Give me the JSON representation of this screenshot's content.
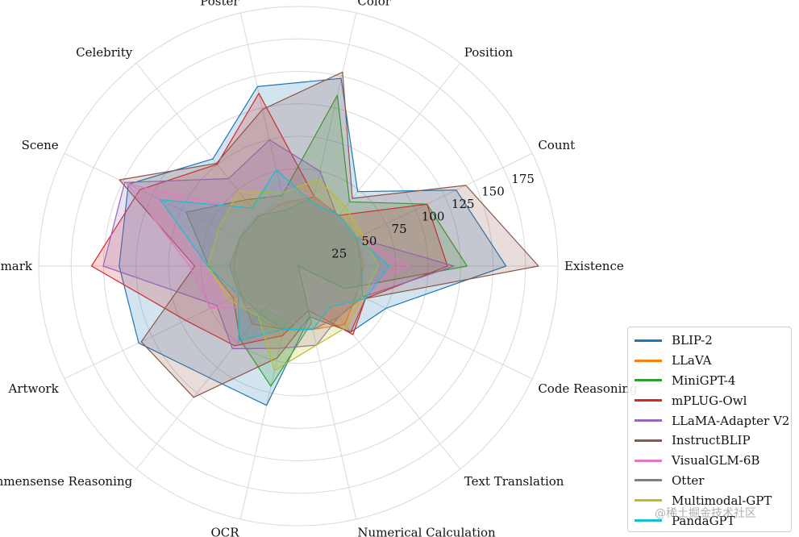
{
  "chart_data": {
    "type": "radar",
    "title": "",
    "categories": [
      "Existence",
      "Count",
      "Position",
      "Color",
      "Poster",
      "Celebrity",
      "Scene",
      "Landmark",
      "Artwork",
      "Commensense Reasoning",
      "OCR",
      "Numerical Calculation",
      "Text Translation",
      "Code Reasoning"
    ],
    "rlim": [
      0,
      200
    ],
    "rticks": [
      25,
      50,
      75,
      100,
      125,
      150,
      175
    ],
    "grid": true,
    "legend_position": "bottom-right",
    "series": [
      {
        "name": "BLIP-2",
        "color": "#1f77b4",
        "values": [
          160,
          135,
          73.3,
          148.3,
          141.8,
          105.6,
          145.3,
          138,
          136.5,
          110,
          110,
          40,
          65,
          75
        ]
      },
      {
        "name": "LLaVA",
        "color": "#ff7f0e",
        "values": [
          50,
          50,
          50,
          55,
          50,
          48.8,
          50,
          50,
          49,
          57.1,
          50,
          50,
          57.5,
          50
        ]
      },
      {
        "name": "MiniGPT-4",
        "color": "#2ca02c",
        "values": [
          130,
          110,
          63.3,
          135,
          55.8,
          65.3,
          95.8,
          69,
          55.8,
          72.1,
          95,
          45,
          0,
          40
        ]
      },
      {
        "name": "mPLUG-Owl",
        "color": "#d62728",
        "values": [
          115,
          110,
          50,
          55,
          136.5,
          100.3,
          135.5,
          159.3,
          96.3,
          78.6,
          55,
          35,
          67.5,
          57.5
        ]
      },
      {
        "name": "LLaMA-Adapter V2",
        "color": "#9467bd",
        "values": [
          120,
          50,
          48.3,
          75,
          99.7,
          86.2,
          148.5,
          150.3,
          69.8,
          81.4,
          65,
          62.5,
          50,
          55
        ]
      },
      {
        "name": "InstructBLIP",
        "color": "#8c564b",
        "values": [
          185,
          143.3,
          66.7,
          153.3,
          123.8,
          101.2,
          153,
          79.8,
          134.3,
          129.3,
          72.5,
          40,
          65,
          57.5
        ]
      },
      {
        "name": "VisualGLM-6B",
        "color": "#e377c2",
        "values": [
          85,
          50,
          48.3,
          55,
          65.3,
          53.2,
          146.3,
          83.8,
          75.3,
          39.3,
          42.5,
          50,
          50,
          47.5
        ]
      },
      {
        "name": "Otter",
        "color": "#7f7f7f",
        "values": [
          48.3,
          50,
          50,
          55,
          44.2,
          49.4,
          50,
          52.9,
          50.5,
          47.1,
          50,
          50,
          50,
          55
        ]
      },
      {
        "name": "Multimodal-GPT",
        "color": "#bcbd22",
        "values": [
          61.7,
          55,
          58.3,
          68.3,
          57.8,
          73.8,
          68,
          69.8,
          59.5,
          49.3,
          82.5,
          62.5,
          60,
          55
        ]
      },
      {
        "name": "PandaGPT",
        "color": "#17becf",
        "values": [
          70,
          50,
          50,
          50,
          76.2,
          57.1,
          118,
          69.8,
          51.3,
          73.6,
          50,
          50,
          40,
          57.5
        ]
      }
    ]
  },
  "watermark": "@稀土掘金技术社区"
}
